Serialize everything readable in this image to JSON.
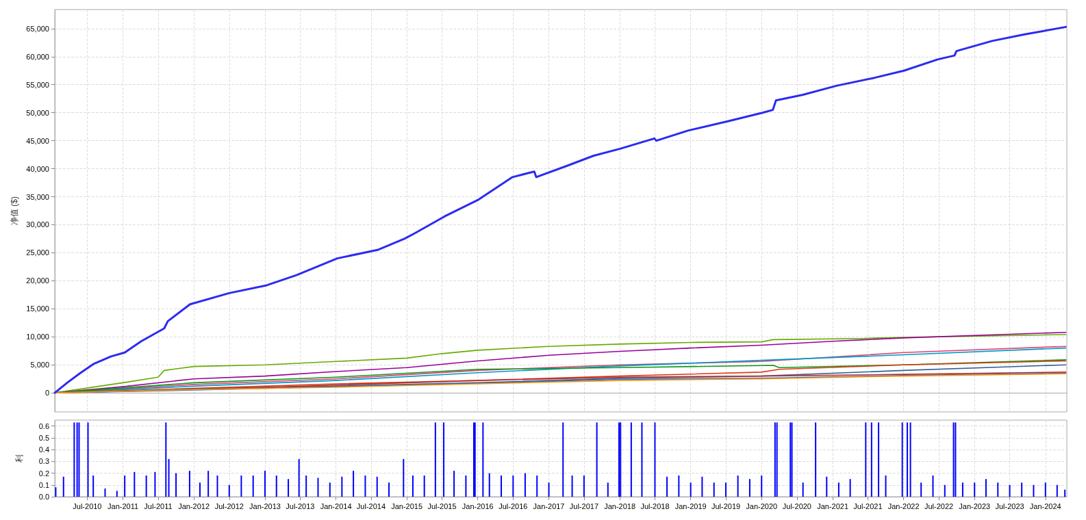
{
  "chart_data": [
    {
      "type": "line",
      "ylabel": "净值 ($)",
      "xlim": [
        "2010-01-15",
        "2024-04-20"
      ],
      "ylim": [
        -3400,
        68400
      ],
      "grid": true,
      "marker": "none",
      "line_style": "solid",
      "tick_labels": "y",
      "xticks": [
        {
          "value": "2010-07-01",
          "label": null
        },
        {
          "value": "2011-01-01",
          "label": null
        },
        {
          "value": "2011-07-01",
          "label": null
        },
        {
          "value": "2012-01-01",
          "label": null
        },
        {
          "value": "2012-07-01",
          "label": null
        },
        {
          "value": "2013-01-01",
          "label": null
        },
        {
          "value": "2013-07-01",
          "label": null
        },
        {
          "value": "2014-01-01",
          "label": null
        },
        {
          "value": "2014-07-01",
          "label": null
        },
        {
          "value": "2015-01-01",
          "label": null
        },
        {
          "value": "2015-07-01",
          "label": null
        },
        {
          "value": "2016-01-01",
          "label": null
        },
        {
          "value": "2016-07-01",
          "label": null
        },
        {
          "value": "2017-01-01",
          "label": null
        },
        {
          "value": "2017-07-01",
          "label": null
        },
        {
          "value": "2018-01-01",
          "label": null
        },
        {
          "value": "2018-07-01",
          "label": null
        },
        {
          "value": "2019-01-01",
          "label": null
        },
        {
          "value": "2019-07-01",
          "label": null
        },
        {
          "value": "2020-01-01",
          "label": null
        },
        {
          "value": "2020-07-01",
          "label": null
        },
        {
          "value": "2021-01-01",
          "label": null
        },
        {
          "value": "2021-07-01",
          "label": null
        },
        {
          "value": "2022-01-01",
          "label": null
        },
        {
          "value": "2022-07-01",
          "label": null
        },
        {
          "value": "2023-01-01",
          "label": null
        },
        {
          "value": "2023-07-01",
          "label": null
        },
        {
          "value": "2024-01-01",
          "label": null
        }
      ],
      "yticks": [
        {
          "value": 0,
          "label": "0"
        },
        {
          "value": 5000,
          "label": "5,000"
        },
        {
          "value": 10000,
          "label": "10,000"
        },
        {
          "value": 15000,
          "label": "15,000"
        },
        {
          "value": 20000,
          "label": "20,000"
        },
        {
          "value": 25000,
          "label": "25,000"
        },
        {
          "value": 30000,
          "label": "30,000"
        },
        {
          "value": 35000,
          "label": "35,000"
        },
        {
          "value": 40000,
          "label": "40,000"
        },
        {
          "value": 45000,
          "label": "45,000"
        },
        {
          "value": 50000,
          "label": "50,000"
        },
        {
          "value": 55000,
          "label": "55,000"
        },
        {
          "value": 60000,
          "label": "60,000"
        },
        {
          "value": 65000,
          "label": "65,000"
        }
      ],
      "series": [
        {
          "color": "#2b2bf0",
          "x": [
            "2010-01-15",
            "2010-03-20",
            "2010-05-25",
            "2010-08-05",
            "2010-11-01",
            "2011-01-10",
            "2011-04-05",
            "2011-08-01",
            "2011-08-20",
            "2011-12-12",
            "2012-07-01",
            "2013-01-10",
            "2013-06-12",
            "2014-01-08",
            "2014-08-03",
            "2014-12-20",
            "2015-02-12",
            "2015-07-15",
            "2016-01-06",
            "2016-06-28",
            "2016-10-18",
            "2016-10-28",
            "2017-04-03",
            "2017-08-18",
            "2018-01-06",
            "2018-06-28",
            "2018-07-08",
            "2018-12-18",
            "2019-07-15",
            "2020-01-06",
            "2020-02-28",
            "2020-03-15",
            "2020-08-01",
            "2021-01-20",
            "2021-08-01",
            "2022-01-03",
            "2022-06-25",
            "2022-09-20",
            "2022-09-30",
            "2023-04-01",
            "2023-09-20",
            "2024-04-15"
          ],
          "values": [
            0,
            1800,
            3500,
            5200,
            6500,
            7200,
            9200,
            11500,
            12800,
            15800,
            17800,
            19200,
            21000,
            24000,
            25500,
            27500,
            28500,
            31500,
            34500,
            38500,
            39500,
            38500,
            40500,
            42300,
            43600,
            45400,
            45000,
            46800,
            48500,
            50000,
            50500,
            52200,
            53200,
            54800,
            56200,
            57500,
            59500,
            60200,
            61000,
            62800,
            64000,
            65300
          ]
        },
        {
          "color": "#66aa00",
          "x": [
            "2010-01-15",
            "2011-01-01",
            "2011-07-01",
            "2011-08-01",
            "2012-01-01",
            "2013-01-01",
            "2014-01-01",
            "2015-01-01",
            "2015-07-01",
            "2016-01-01",
            "2017-01-01",
            "2018-01-01",
            "2019-01-01",
            "2020-01-01",
            "2020-03-01",
            "2021-06-01",
            "2022-01-01",
            "2024-04-15"
          ],
          "values": [
            0,
            1800,
            2800,
            4000,
            4700,
            5000,
            5600,
            6200,
            7000,
            7600,
            8300,
            8700,
            9000,
            9100,
            9500,
            9700,
            9900,
            10400
          ]
        },
        {
          "color": "#990099",
          "x": [
            "2010-01-15",
            "2011-01-01",
            "2012-01-01",
            "2013-01-01",
            "2014-01-01",
            "2015-01-01",
            "2016-01-01",
            "2017-01-01",
            "2018-01-01",
            "2019-01-01",
            "2020-01-01",
            "2021-01-01",
            "2022-01-01",
            "2024-04-15"
          ],
          "values": [
            0,
            1100,
            2500,
            3000,
            3800,
            4500,
            5700,
            6700,
            7400,
            8000,
            8500,
            9200,
            9800,
            10800
          ]
        },
        {
          "color": "#dd4477",
          "x": [
            "2010-01-15",
            "2012-01-01",
            "2014-01-01",
            "2016-01-01",
            "2018-01-01",
            "2020-01-01",
            "2022-01-01",
            "2024-04-15"
          ],
          "values": [
            0,
            1500,
            2500,
            4000,
            5000,
            5600,
            7200,
            8300
          ]
        },
        {
          "color": "#0099c6",
          "x": [
            "2010-01-15",
            "2012-01-01",
            "2014-01-01",
            "2016-01-01",
            "2018-01-01",
            "2020-01-01",
            "2022-01-01",
            "2024-04-15"
          ],
          "values": [
            0,
            1200,
            2200,
            3600,
            4800,
            5800,
            6800,
            8000
          ]
        },
        {
          "color": "#109618",
          "x": [
            "2010-01-15",
            "2012-01-01",
            "2014-01-01",
            "2016-01-01",
            "2018-01-01",
            "2020-03-01",
            "2020-04-01",
            "2022-01-01",
            "2024-04-15"
          ],
          "values": [
            0,
            1800,
            2800,
            4200,
            4500,
            4900,
            4500,
            5000,
            5900
          ]
        },
        {
          "color": "#dc3912",
          "x": [
            "2010-01-15",
            "2011-01-01",
            "2012-01-01",
            "2014-01-01",
            "2016-01-01",
            "2018-01-01",
            "2020-01-01",
            "2020-04-01",
            "2022-01-01",
            "2024-04-15"
          ],
          "values": [
            0,
            400,
            800,
            1600,
            2200,
            3000,
            3700,
            4200,
            5000,
            5700
          ]
        },
        {
          "color": "#316395",
          "x": [
            "2010-01-15",
            "2012-01-01",
            "2014-01-01",
            "2016-01-01",
            "2018-01-01",
            "2020-01-01",
            "2022-01-01",
            "2024-04-15"
          ],
          "values": [
            0,
            700,
            1200,
            1800,
            2600,
            3000,
            4000,
            5000
          ]
        },
        {
          "color": "#b82e2e",
          "x": [
            "2010-01-15",
            "2012-01-01",
            "2014-01-01",
            "2016-01-01",
            "2018-01-01",
            "2020-01-01",
            "2022-01-01",
            "2024-04-15"
          ],
          "values": [
            0,
            600,
            1400,
            2200,
            2800,
            3000,
            3300,
            3700
          ]
        },
        {
          "color": "#3366cc",
          "x": [
            "2010-01-15",
            "2012-01-01",
            "2014-01-01",
            "2016-01-01",
            "2018-01-01",
            "2020-01-01",
            "2022-01-01",
            "2024-04-15"
          ],
          "values": [
            0,
            500,
            1100,
            1700,
            2400,
            2600,
            3100,
            3500
          ]
        },
        {
          "color": "#ff9900",
          "x": [
            "2010-01-15",
            "2011-01-01",
            "2012-01-01",
            "2014-01-01",
            "2016-01-01",
            "2018-01-01",
            "2020-01-01",
            "2022-01-01",
            "2024-04-15"
          ],
          "values": [
            0,
            300,
            600,
            1000,
            1600,
            2200,
            2500,
            3000,
            3400
          ]
        }
      ]
    },
    {
      "type": "bar",
      "ylabel": "利",
      "xlim": [
        "2010-01-15",
        "2024-04-20"
      ],
      "ylim": [
        0,
        0.65
      ],
      "grid": true,
      "xticks": [
        {
          "value": "2010-07-01",
          "label": "Jul-2010"
        },
        {
          "value": "2011-01-01",
          "label": "Jan-2011"
        },
        {
          "value": "2011-07-01",
          "label": "Jul-2011"
        },
        {
          "value": "2012-01-01",
          "label": "Jan-2012"
        },
        {
          "value": "2012-07-01",
          "label": "Jul-2012"
        },
        {
          "value": "2013-01-01",
          "label": "Jan-2013"
        },
        {
          "value": "2013-07-01",
          "label": "Jul-2013"
        },
        {
          "value": "2014-01-01",
          "label": "Jan-2014"
        },
        {
          "value": "2014-07-01",
          "label": "Jul-2014"
        },
        {
          "value": "2015-01-01",
          "label": "Jan-2015"
        },
        {
          "value": "2015-07-01",
          "label": "Jul-2015"
        },
        {
          "value": "2016-01-01",
          "label": "Jan-2016"
        },
        {
          "value": "2016-07-01",
          "label": "Jul-2016"
        },
        {
          "value": "2017-01-01",
          "label": "Jan-2017"
        },
        {
          "value": "2017-07-01",
          "label": "Jul-2017"
        },
        {
          "value": "2018-01-01",
          "label": "Jan-2018"
        },
        {
          "value": "2018-07-01",
          "label": "Jul-2018"
        },
        {
          "value": "2019-01-01",
          "label": "Jan-2019"
        },
        {
          "value": "2019-07-01",
          "label": "Jul-2019"
        },
        {
          "value": "2020-01-01",
          "label": "Jan-2020"
        },
        {
          "value": "2020-07-01",
          "label": "Jul-2020"
        },
        {
          "value": "2021-01-01",
          "label": "Jan-2021"
        },
        {
          "value": "2021-07-01",
          "label": "Jul-2021"
        },
        {
          "value": "2022-01-01",
          "label": "Jan-2022"
        },
        {
          "value": "2022-07-01",
          "label": "Jul-2022"
        },
        {
          "value": "2023-01-01",
          "label": "Jan-2023"
        },
        {
          "value": "2023-07-01",
          "label": "Jul-2023"
        },
        {
          "value": "2024-01-01",
          "label": "Jan-2024"
        }
      ],
      "yticks": [
        {
          "value": 0,
          "label": "0.0"
        },
        {
          "value": 0.1,
          "label": "0.1"
        },
        {
          "value": 0.2,
          "label": "0.2"
        },
        {
          "value": 0.3,
          "label": "0.3"
        },
        {
          "value": 0.4,
          "label": "0.4"
        },
        {
          "value": 0.5,
          "label": "0.5"
        },
        {
          "value": 0.6,
          "label": "0.6"
        }
      ],
      "series": [
        {
          "color": "#0000ff",
          "x": [
            "2010-01-20",
            "2010-03-01",
            "2010-04-25",
            "2010-05-10",
            "2010-05-20",
            "2010-07-05",
            "2010-08-01",
            "2010-10-01",
            "2010-12-01",
            "2011-01-10",
            "2011-03-01",
            "2011-05-01",
            "2011-06-15",
            "2011-08-10",
            "2011-08-25",
            "2011-10-01",
            "2011-12-10",
            "2012-02-01",
            "2012-03-15",
            "2012-05-01",
            "2012-07-01",
            "2012-09-01",
            "2012-11-01",
            "2013-01-01",
            "2013-03-01",
            "2013-05-01",
            "2013-06-25",
            "2013-08-01",
            "2013-10-01",
            "2013-12-01",
            "2014-02-01",
            "2014-04-01",
            "2014-06-01",
            "2014-08-01",
            "2014-10-01",
            "2014-12-15",
            "2015-02-01",
            "2015-04-01",
            "2015-05-28",
            "2015-07-10",
            "2015-09-01",
            "2015-11-01",
            "2015-12-12",
            "2015-12-18",
            "2016-01-28",
            "2016-03-01",
            "2016-05-01",
            "2016-07-01",
            "2016-09-01",
            "2016-11-01",
            "2017-01-01",
            "2017-03-15",
            "2017-05-01",
            "2017-07-01",
            "2017-09-05",
            "2017-11-01",
            "2017-12-28",
            "2018-01-05",
            "2018-03-01",
            "2018-04-25",
            "2018-07-01",
            "2018-09-01",
            "2018-11-01",
            "2019-01-01",
            "2019-03-01",
            "2019-05-01",
            "2019-07-01",
            "2019-09-01",
            "2019-11-01",
            "2020-01-01",
            "2020-03-10",
            "2020-03-20",
            "2020-05-28",
            "2020-06-05",
            "2020-08-01",
            "2020-10-05",
            "2020-12-01",
            "2021-02-01",
            "2021-04-01",
            "2021-06-20",
            "2021-07-20",
            "2021-08-25",
            "2021-10-01",
            "2021-12-25",
            "2022-01-20",
            "2022-02-05",
            "2022-04-01",
            "2022-06-01",
            "2022-08-01",
            "2022-09-15",
            "2022-09-25",
            "2022-11-01",
            "2023-01-01",
            "2023-03-01",
            "2023-05-01",
            "2023-07-01",
            "2023-09-01",
            "2023-11-01",
            "2024-01-01",
            "2024-03-01",
            "2024-04-10"
          ],
          "values": [
            0.08,
            0.17,
            0.63,
            0.63,
            0.63,
            0.63,
            0.18,
            0.07,
            0.05,
            0.18,
            0.21,
            0.18,
            0.21,
            0.63,
            0.32,
            0.2,
            0.22,
            0.12,
            0.22,
            0.18,
            0.1,
            0.18,
            0.18,
            0.22,
            0.18,
            0.15,
            0.32,
            0.18,
            0.16,
            0.12,
            0.17,
            0.22,
            0.18,
            0.17,
            0.12,
            0.32,
            0.18,
            0.18,
            0.63,
            0.63,
            0.22,
            0.18,
            0.63,
            0.63,
            0.63,
            0.2,
            0.18,
            0.18,
            0.2,
            0.18,
            0.12,
            0.63,
            0.18,
            0.18,
            0.63,
            0.12,
            0.63,
            0.63,
            0.63,
            0.63,
            0.63,
            0.17,
            0.18,
            0.12,
            0.17,
            0.12,
            0.12,
            0.18,
            0.15,
            0.18,
            0.63,
            0.63,
            0.63,
            0.63,
            0.12,
            0.63,
            0.17,
            0.12,
            0.15,
            0.63,
            0.63,
            0.63,
            0.18,
            0.63,
            0.63,
            0.63,
            0.12,
            0.18,
            0.1,
            0.63,
            0.63,
            0.12,
            0.12,
            0.15,
            0.12,
            0.1,
            0.12,
            0.1,
            0.12,
            0.1,
            0.06
          ]
        }
      ]
    }
  ]
}
